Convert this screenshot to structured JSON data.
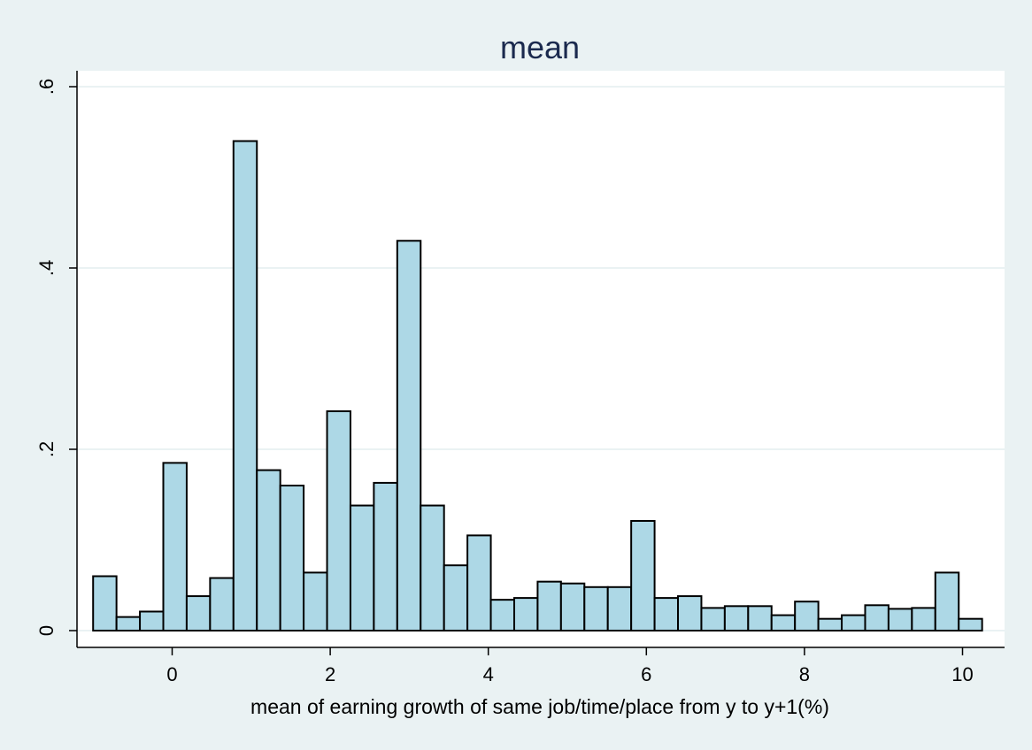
{
  "chart_data": {
    "type": "bar",
    "title": "mean",
    "xlabel": "mean of earning growth of same job/time/place from y to y+1(%)",
    "ylabel": "",
    "x_ticks": [
      "0",
      "2",
      "4",
      "6",
      "8",
      "10"
    ],
    "y_ticks": [
      "0",
      ".2",
      ".4",
      ".6"
    ],
    "xlim": [
      -1.2,
      10.5
    ],
    "ylim": [
      0,
      0.6
    ],
    "grid": true,
    "bin_start": -1.0,
    "bin_width": 0.296,
    "values": [
      0.06,
      0.015,
      0.021,
      0.185,
      0.038,
      0.058,
      0.54,
      0.177,
      0.16,
      0.064,
      0.242,
      0.138,
      0.163,
      0.43,
      0.138,
      0.072,
      0.105,
      0.034,
      0.036,
      0.054,
      0.052,
      0.048,
      0.048,
      0.121,
      0.036,
      0.038,
      0.025,
      0.027,
      0.027,
      0.017,
      0.032,
      0.013,
      0.017,
      0.028,
      0.024,
      0.025,
      0.064,
      0.013
    ]
  }
}
